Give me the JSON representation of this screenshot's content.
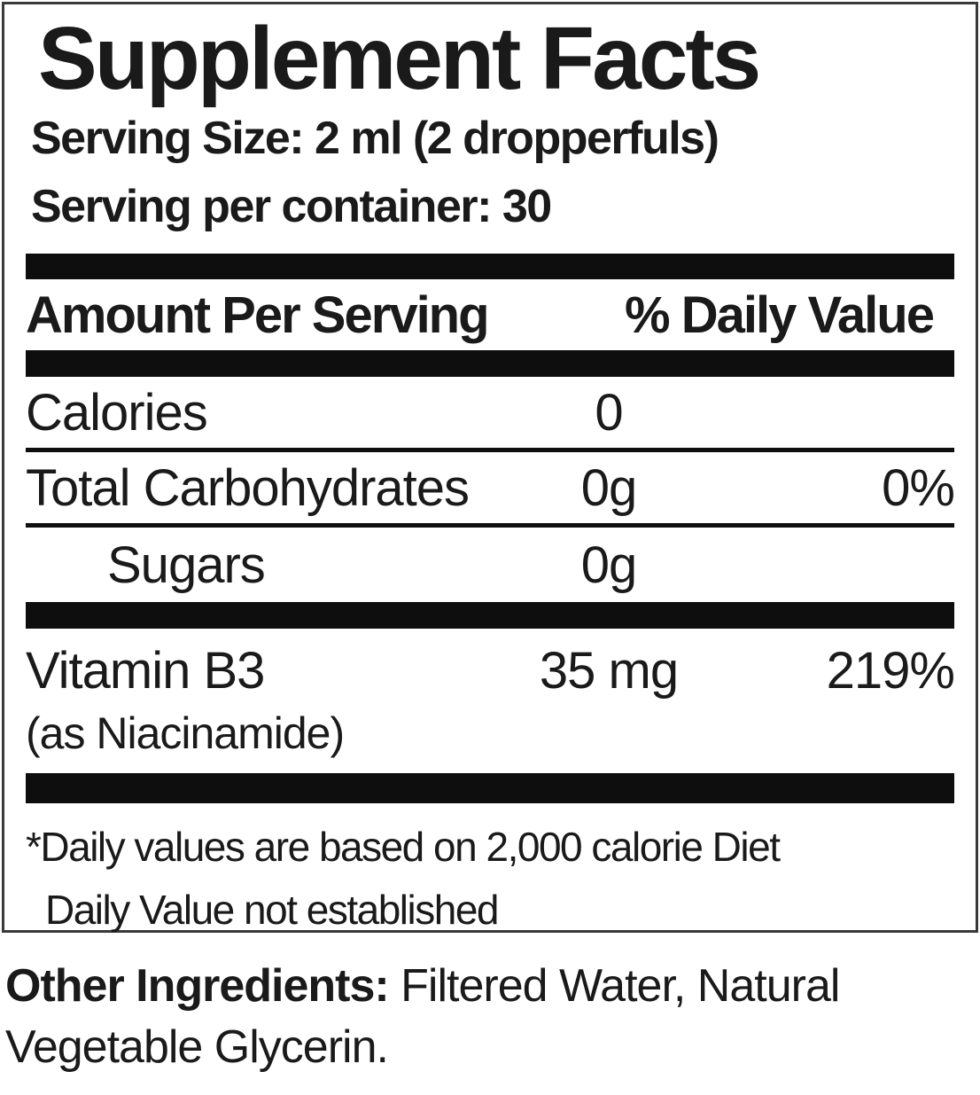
{
  "label": {
    "title": "Supplement Facts",
    "serving_size": "Serving Size: 2 ml (2 dropperfuls)",
    "servings_per_container": "Serving per container: 30",
    "header": {
      "amount_per_serving": "Amount Per Serving",
      "percent_daily_value": "% Daily Value"
    },
    "rows": [
      {
        "name": "Calories",
        "amount": "0",
        "dv": ""
      },
      {
        "name": "Total Carbohydrates",
        "amount": "0g",
        "dv": "0%"
      },
      {
        "name": "Sugars",
        "amount": "0g",
        "dv": ""
      },
      {
        "name": "Vitamin B3",
        "sub": "(as Niacinamide)",
        "amount": "35 mg",
        "dv": "219%"
      }
    ],
    "footnotes": [
      "*Daily values are based on 2,000 calorie Diet",
      "Daily Value not established"
    ]
  },
  "other_ingredients": {
    "label": "Other Ingredients:",
    "text": " Filtered Water, Natural Vegetable Glycerin."
  },
  "colors": {
    "text": "#1a1a1a",
    "bar": "#0e0e0e",
    "border": "#3a3a3a",
    "background": "#ffffff"
  }
}
